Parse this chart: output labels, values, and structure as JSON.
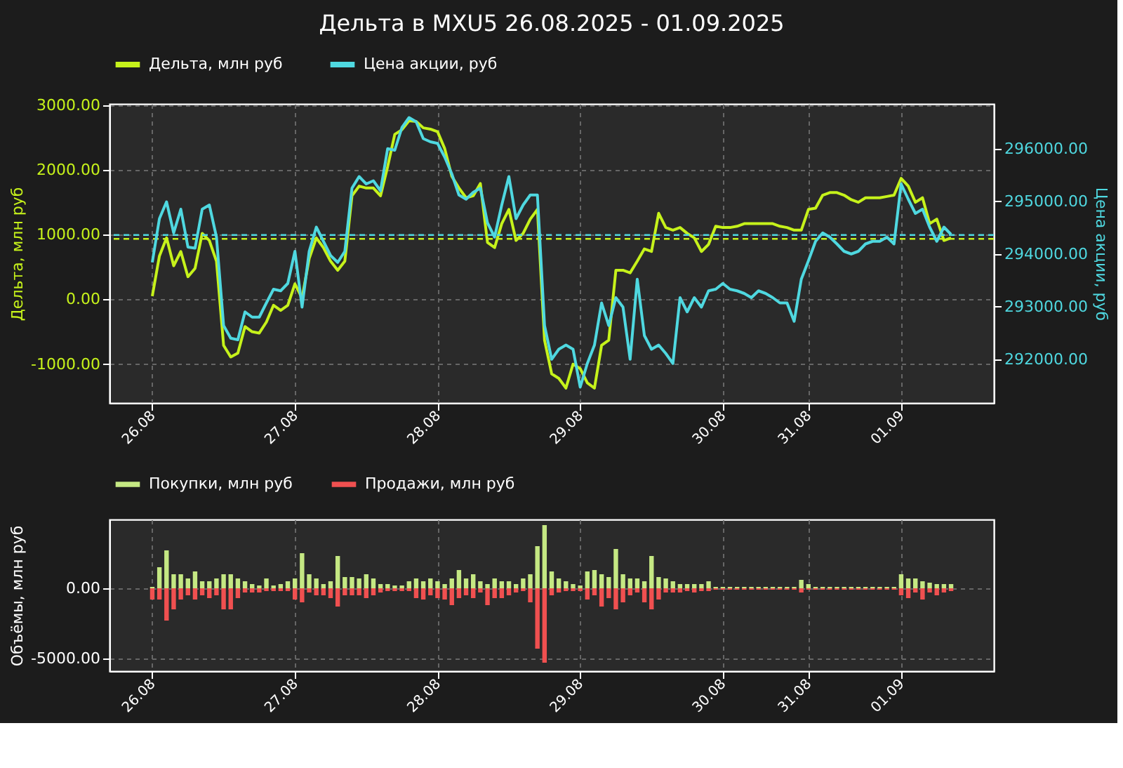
{
  "chart_data": [
    {
      "type": "line",
      "title": "Дельта в MXU5 26.08.2025 - 01.09.2025",
      "ylabel": "Дельта, млн руб",
      "y2label": "Цена акции, руб",
      "categories": [
        "26.08",
        null,
        null,
        null,
        null,
        null,
        null,
        null,
        null,
        null,
        null,
        null,
        null,
        null,
        null,
        null,
        null,
        null,
        null,
        null,
        "27.08",
        null,
        null,
        null,
        null,
        null,
        null,
        null,
        null,
        null,
        null,
        null,
        null,
        null,
        null,
        null,
        null,
        null,
        null,
        null,
        "28.08",
        null,
        null,
        null,
        null,
        null,
        null,
        null,
        null,
        null,
        null,
        null,
        null,
        null,
        null,
        null,
        null,
        null,
        null,
        null,
        "29.08",
        null,
        null,
        null,
        null,
        null,
        null,
        null,
        null,
        null,
        null,
        null,
        null,
        null,
        null,
        null,
        null,
        null,
        null,
        null,
        "30.08",
        null,
        null,
        null,
        null,
        null,
        null,
        null,
        null,
        null,
        null,
        null,
        "31.08",
        null,
        null,
        null,
        null,
        null,
        null,
        null,
        null,
        null,
        null,
        null,
        null,
        "01.09",
        null,
        null,
        null,
        null,
        null,
        null,
        null
      ],
      "ylim": [
        -1600,
        3020
      ],
      "yticks": [
        {
          "value": -1000,
          "label": "-1000.00"
        },
        {
          "value": 0,
          "label": "0.00"
        },
        {
          "value": 1000,
          "label": "1000.00"
        },
        {
          "value": 2000,
          "label": "2000.00"
        },
        {
          "value": 3000,
          "label": "3000.00"
        }
      ],
      "y2lim": [
        291170,
        296850
      ],
      "y2ticks": [
        {
          "value": 292000,
          "label": "292000.00"
        },
        {
          "value": 293000,
          "label": "293000.00"
        },
        {
          "value": 294000,
          "label": "294000.00"
        },
        {
          "value": 295000,
          "label": "295000.00"
        },
        {
          "value": 296000,
          "label": "296000.00"
        }
      ],
      "grid": true,
      "legend": "top",
      "series": [
        {
          "name": "Дельта, млн руб",
          "color": "#c6f21b",
          "values": [
            50,
            670,
            950,
            520,
            740,
            350,
            480,
            1020,
            910,
            590,
            -710,
            -890,
            -830,
            -420,
            -500,
            -520,
            -350,
            -90,
            -170,
            -90,
            240,
            20,
            630,
            950,
            800,
            590,
            450,
            590,
            1600,
            1750,
            1720,
            1720,
            1600,
            2050,
            2550,
            2620,
            2760,
            2750,
            2650,
            2630,
            2590,
            2330,
            1900,
            1720,
            1570,
            1600,
            1790,
            880,
            800,
            1170,
            1390,
            910,
            1020,
            1240,
            1390,
            -630,
            -1150,
            -1220,
            -1370,
            -1000,
            -1070,
            -1290,
            -1370,
            -710,
            -630,
            450,
            450,
            410,
            590,
            780,
            740,
            1330,
            1110,
            1070,
            1110,
            1020,
            950,
            740,
            850,
            1130,
            1110,
            1110,
            1130,
            1170,
            1170,
            1170,
            1170,
            1170,
            1130,
            1110,
            1070,
            1070,
            1390,
            1410,
            1610,
            1650,
            1650,
            1610,
            1540,
            1500,
            1570,
            1570,
            1570,
            1590,
            1610,
            1870,
            1750,
            1500,
            1570,
            1170,
            1240,
            910,
            950
          ]
        },
        {
          "name": "Цена акции, руб",
          "color": "#4fd8e0",
          "axis": "y2",
          "values": [
            293840,
            294670,
            294990,
            294400,
            294850,
            294130,
            294110,
            294850,
            294930,
            294320,
            292640,
            292400,
            292370,
            292900,
            292800,
            292800,
            293070,
            293330,
            293300,
            293440,
            294050,
            292990,
            294050,
            294510,
            294240,
            293970,
            293840,
            294050,
            295250,
            295470,
            295330,
            295390,
            295200,
            296000,
            295970,
            296400,
            296590,
            296510,
            296190,
            296130,
            296100,
            295840,
            295520,
            295120,
            295040,
            295170,
            295250,
            294590,
            294320,
            294930,
            295470,
            294670,
            294930,
            295120,
            295120,
            292640,
            292000,
            292190,
            292270,
            292190,
            291470,
            291920,
            292270,
            293070,
            292640,
            293170,
            292990,
            292000,
            293520,
            292450,
            292190,
            292270,
            292110,
            291920,
            293170,
            292900,
            293170,
            292990,
            293300,
            293330,
            293440,
            293330,
            293300,
            293250,
            293170,
            293300,
            293250,
            293170,
            293070,
            293070,
            292720,
            293520,
            293870,
            294240,
            294400,
            294320,
            294190,
            294050,
            294000,
            294050,
            294190,
            294240,
            294240,
            294320,
            294190,
            295330,
            295040,
            294770,
            294850,
            294510,
            294240,
            294510,
            294370
          ]
        }
      ],
      "ref_lines": [
        {
          "axis": "y",
          "value": 935,
          "color": "#c6f21b",
          "line_style": "dashed"
        },
        {
          "axis": "y2",
          "value": 294360,
          "color": "#4fd8e0",
          "line_style": "dashed"
        }
      ]
    },
    {
      "type": "bar",
      "ylabel": "Объёмы, млн руб",
      "stacked": true,
      "categories": [
        "26.08",
        null,
        null,
        null,
        null,
        null,
        null,
        null,
        null,
        null,
        null,
        null,
        null,
        null,
        null,
        null,
        null,
        null,
        null,
        null,
        "27.08",
        null,
        null,
        null,
        null,
        null,
        null,
        null,
        null,
        null,
        null,
        null,
        null,
        null,
        null,
        null,
        null,
        null,
        null,
        null,
        "28.08",
        null,
        null,
        null,
        null,
        null,
        null,
        null,
        null,
        null,
        null,
        null,
        null,
        null,
        null,
        null,
        null,
        null,
        null,
        null,
        "29.08",
        null,
        null,
        null,
        null,
        null,
        null,
        null,
        null,
        null,
        null,
        null,
        null,
        null,
        null,
        null,
        null,
        null,
        null,
        null,
        "30.08",
        null,
        null,
        null,
        null,
        null,
        null,
        null,
        null,
        null,
        null,
        null,
        "31.08",
        null,
        null,
        null,
        null,
        null,
        null,
        null,
        null,
        null,
        null,
        null,
        null,
        "01.09",
        null,
        null,
        null,
        null,
        null,
        null,
        null
      ],
      "ylim": [
        -5900,
        4900
      ],
      "yticks": [
        {
          "value": -5000,
          "label": "-5000.00"
        },
        {
          "value": 0,
          "label": "0.00"
        }
      ],
      "grid": true,
      "legend": "top",
      "series": [
        {
          "name": "Покупки, млн руб",
          "color": "#c5e883",
          "values": [
            100,
            1500,
            2700,
            1000,
            1000,
            700,
            1200,
            500,
            500,
            700,
            1000,
            1000,
            700,
            500,
            300,
            200,
            700,
            200,
            300,
            500,
            700,
            2500,
            1000,
            700,
            300,
            500,
            2300,
            800,
            800,
            700,
            1000,
            700,
            300,
            300,
            200,
            200,
            500,
            700,
            500,
            700,
            500,
            300,
            700,
            1300,
            700,
            1000,
            500,
            300,
            700,
            500,
            500,
            300,
            700,
            1000,
            3000,
            4500,
            1200,
            700,
            500,
            300,
            200,
            1200,
            1300,
            1000,
            800,
            2800,
            1000,
            700,
            700,
            500,
            2300,
            800,
            700,
            500,
            300,
            300,
            300,
            300,
            500,
            100,
            100,
            100,
            100,
            100,
            100,
            100,
            100,
            100,
            100,
            100,
            100,
            600,
            300,
            100,
            100,
            100,
            100,
            100,
            100,
            100,
            100,
            100,
            100,
            100,
            100,
            1000,
            700,
            700,
            500,
            400,
            300,
            300,
            300
          ]
        },
        {
          "name": "Продажи, млн руб",
          "color": "#f05050",
          "values": [
            -800,
            -800,
            -2300,
            -1500,
            -800,
            -500,
            -800,
            -500,
            -700,
            -500,
            -1500,
            -1500,
            -700,
            -300,
            -300,
            -300,
            -200,
            -200,
            -200,
            -200,
            -800,
            -1000,
            -300,
            -500,
            -500,
            -700,
            -1300,
            -500,
            -500,
            -500,
            -700,
            -500,
            -300,
            -200,
            -200,
            -200,
            -200,
            -700,
            -800,
            -500,
            -700,
            -800,
            -1200,
            -700,
            -500,
            -700,
            -300,
            -1200,
            -700,
            -700,
            -500,
            -300,
            -200,
            -1000,
            -4300,
            -5300,
            -500,
            -300,
            -200,
            -200,
            -200,
            -800,
            -500,
            -1300,
            -700,
            -1500,
            -1000,
            -500,
            -300,
            -1000,
            -1500,
            -800,
            -300,
            -300,
            -300,
            -200,
            -300,
            -200,
            -200,
            -100,
            -100,
            -100,
            -100,
            -100,
            -100,
            -100,
            -100,
            -100,
            -100,
            -100,
            -100,
            -300,
            -100,
            -100,
            -100,
            -100,
            -100,
            -100,
            -100,
            -100,
            -100,
            -100,
            -100,
            -100,
            -100,
            -500,
            -700,
            -300,
            -800,
            -300,
            -500,
            -300,
            -200
          ]
        }
      ]
    }
  ]
}
